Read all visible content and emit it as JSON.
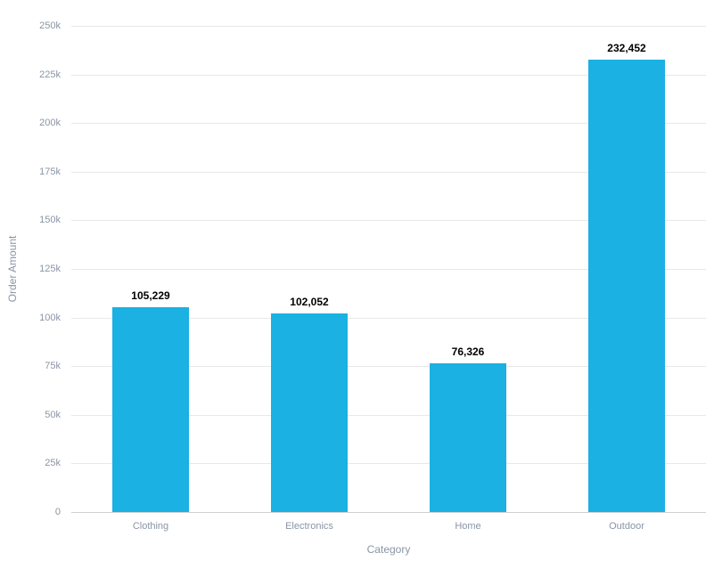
{
  "chart_data": {
    "type": "bar",
    "title": "",
    "xlabel": "Category",
    "ylabel": "Order Amount",
    "categories": [
      "Clothing",
      "Electronics",
      "Home",
      "Outdoor"
    ],
    "values": [
      105229,
      102052,
      76326,
      232452
    ],
    "value_labels": [
      "105,229",
      "102,052",
      "76,326",
      "232,452"
    ],
    "y_axis": {
      "min": 0,
      "max": 250000,
      "tick_values": [
        0,
        25000,
        50000,
        75000,
        100000,
        125000,
        150000,
        175000,
        200000,
        225000,
        250000
      ],
      "tick_labels": [
        "0",
        "25k",
        "50k",
        "75k",
        "100k",
        "125k",
        "150k",
        "175k",
        "200k",
        "225k",
        "250k"
      ]
    },
    "grid": "horizontal gridlines on, vertical off",
    "legend": "none",
    "colors": {
      "bar": "#1bb1e2",
      "gridline": "#e8e8e8",
      "zero_axis_line": "#d0d0d0",
      "tick_text": "#8a95a5",
      "axis_title_text": "#8a95a5",
      "value_label_text": "#000000",
      "background": "#ffffff"
    }
  }
}
